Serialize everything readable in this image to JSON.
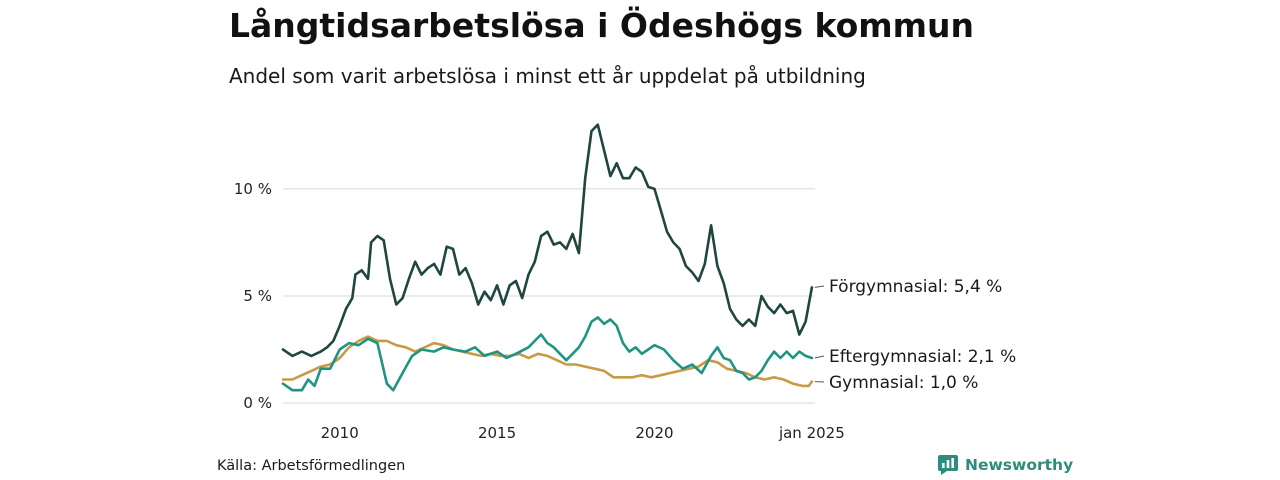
{
  "header": {
    "title": "Långtidsarbetslösa i Ödeshögs kommun",
    "subtitle": "Andel som varit arbetslösa i minst ett år uppdelat på utbildning"
  },
  "footer": {
    "source": "Källa: Arbetsförmedlingen",
    "brand": "Newsworthy"
  },
  "colors": {
    "forgymnasial": "#1f4640",
    "eftergymnasial": "#1f9483",
    "gymnasial": "#c99a45",
    "grid": "#d8d8d8",
    "brand": "#2e8c7e"
  },
  "icons": [
    "newsworthy-logo-icon"
  ],
  "chart_data": {
    "type": "line",
    "title": "Långtidsarbetslösa i Ödeshögs kommun",
    "subtitle": "Andel som varit arbetslösa i minst ett år uppdelat på utbildning",
    "xlabel": "",
    "ylabel": "",
    "xlim": [
      2008.2,
      2025.1
    ],
    "ylim": [
      0,
      13.5
    ],
    "y_ticks": [
      {
        "value": 0,
        "label": "0 %"
      },
      {
        "value": 5,
        "label": "5 %"
      },
      {
        "value": 10,
        "label": "10 %"
      }
    ],
    "x_ticks": [
      {
        "value": 2010,
        "label": "2010"
      },
      {
        "value": 2015,
        "label": "2015"
      },
      {
        "value": 2020,
        "label": "2020"
      },
      {
        "value": 2025,
        "label": "jan 2025"
      }
    ],
    "grid": true,
    "series": [
      {
        "name": "Förgymnasial",
        "end_label": "Förgymnasial: 5,4 %",
        "color": "#1f4640",
        "points": [
          [
            2008.2,
            2.5
          ],
          [
            2008.5,
            2.2
          ],
          [
            2008.8,
            2.4
          ],
          [
            2009.1,
            2.2
          ],
          [
            2009.4,
            2.4
          ],
          [
            2009.6,
            2.6
          ],
          [
            2009.8,
            2.9
          ],
          [
            2010.0,
            3.6
          ],
          [
            2010.2,
            4.4
          ],
          [
            2010.4,
            4.9
          ],
          [
            2010.5,
            6.0
          ],
          [
            2010.7,
            6.2
          ],
          [
            2010.9,
            5.8
          ],
          [
            2011.0,
            7.5
          ],
          [
            2011.2,
            7.8
          ],
          [
            2011.4,
            7.6
          ],
          [
            2011.6,
            5.8
          ],
          [
            2011.8,
            4.6
          ],
          [
            2012.0,
            4.9
          ],
          [
            2012.2,
            5.8
          ],
          [
            2012.4,
            6.6
          ],
          [
            2012.6,
            6.0
          ],
          [
            2012.8,
            6.3
          ],
          [
            2013.0,
            6.5
          ],
          [
            2013.2,
            6.0
          ],
          [
            2013.4,
            7.3
          ],
          [
            2013.6,
            7.2
          ],
          [
            2013.8,
            6.0
          ],
          [
            2014.0,
            6.3
          ],
          [
            2014.2,
            5.6
          ],
          [
            2014.4,
            4.6
          ],
          [
            2014.6,
            5.2
          ],
          [
            2014.8,
            4.8
          ],
          [
            2015.0,
            5.5
          ],
          [
            2015.2,
            4.6
          ],
          [
            2015.4,
            5.5
          ],
          [
            2015.6,
            5.7
          ],
          [
            2015.8,
            4.9
          ],
          [
            2016.0,
            6.0
          ],
          [
            2016.2,
            6.6
          ],
          [
            2016.4,
            7.8
          ],
          [
            2016.6,
            8.0
          ],
          [
            2016.8,
            7.4
          ],
          [
            2017.0,
            7.5
          ],
          [
            2017.2,
            7.2
          ],
          [
            2017.4,
            7.9
          ],
          [
            2017.6,
            7.0
          ],
          [
            2017.8,
            10.5
          ],
          [
            2018.0,
            12.7
          ],
          [
            2018.2,
            13.0
          ],
          [
            2018.4,
            11.8
          ],
          [
            2018.6,
            10.6
          ],
          [
            2018.8,
            11.2
          ],
          [
            2019.0,
            10.5
          ],
          [
            2019.2,
            10.5
          ],
          [
            2019.4,
            11.0
          ],
          [
            2019.6,
            10.8
          ],
          [
            2019.8,
            10.1
          ],
          [
            2020.0,
            10.0
          ],
          [
            2020.2,
            9.0
          ],
          [
            2020.4,
            8.0
          ],
          [
            2020.6,
            7.5
          ],
          [
            2020.8,
            7.2
          ],
          [
            2021.0,
            6.4
          ],
          [
            2021.2,
            6.1
          ],
          [
            2021.4,
            5.7
          ],
          [
            2021.6,
            6.5
          ],
          [
            2021.8,
            8.3
          ],
          [
            2022.0,
            6.4
          ],
          [
            2022.2,
            5.6
          ],
          [
            2022.4,
            4.4
          ],
          [
            2022.6,
            3.9
          ],
          [
            2022.8,
            3.6
          ],
          [
            2023.0,
            3.9
          ],
          [
            2023.2,
            3.6
          ],
          [
            2023.4,
            5.0
          ],
          [
            2023.6,
            4.5
          ],
          [
            2023.8,
            4.2
          ],
          [
            2024.0,
            4.6
          ],
          [
            2024.2,
            4.2
          ],
          [
            2024.4,
            4.3
          ],
          [
            2024.6,
            3.2
          ],
          [
            2024.8,
            3.8
          ],
          [
            2025.0,
            5.4
          ]
        ]
      },
      {
        "name": "Eftergymnasial",
        "end_label": "Eftergymnasial: 2,1 %",
        "color": "#1f9483",
        "points": [
          [
            2008.2,
            0.9
          ],
          [
            2008.5,
            0.6
          ],
          [
            2008.8,
            0.6
          ],
          [
            2009.0,
            1.1
          ],
          [
            2009.2,
            0.8
          ],
          [
            2009.4,
            1.6
          ],
          [
            2009.7,
            1.6
          ],
          [
            2010.0,
            2.5
          ],
          [
            2010.3,
            2.8
          ],
          [
            2010.6,
            2.7
          ],
          [
            2010.9,
            3.0
          ],
          [
            2011.2,
            2.8
          ],
          [
            2011.5,
            0.9
          ],
          [
            2011.7,
            0.6
          ],
          [
            2012.0,
            1.4
          ],
          [
            2012.3,
            2.2
          ],
          [
            2012.6,
            2.5
          ],
          [
            2013.0,
            2.4
          ],
          [
            2013.3,
            2.6
          ],
          [
            2013.6,
            2.5
          ],
          [
            2014.0,
            2.4
          ],
          [
            2014.3,
            2.6
          ],
          [
            2014.6,
            2.2
          ],
          [
            2015.0,
            2.4
          ],
          [
            2015.3,
            2.1
          ],
          [
            2015.6,
            2.3
          ],
          [
            2016.0,
            2.6
          ],
          [
            2016.2,
            2.9
          ],
          [
            2016.4,
            3.2
          ],
          [
            2016.6,
            2.8
          ],
          [
            2016.8,
            2.6
          ],
          [
            2017.0,
            2.3
          ],
          [
            2017.2,
            2.0
          ],
          [
            2017.4,
            2.3
          ],
          [
            2017.6,
            2.6
          ],
          [
            2017.8,
            3.1
          ],
          [
            2018.0,
            3.8
          ],
          [
            2018.2,
            4.0
          ],
          [
            2018.4,
            3.7
          ],
          [
            2018.6,
            3.9
          ],
          [
            2018.8,
            3.6
          ],
          [
            2019.0,
            2.8
          ],
          [
            2019.2,
            2.4
          ],
          [
            2019.4,
            2.6
          ],
          [
            2019.6,
            2.3
          ],
          [
            2019.8,
            2.5
          ],
          [
            2020.0,
            2.7
          ],
          [
            2020.3,
            2.5
          ],
          [
            2020.6,
            2.0
          ],
          [
            2020.9,
            1.6
          ],
          [
            2021.2,
            1.8
          ],
          [
            2021.5,
            1.4
          ],
          [
            2021.8,
            2.2
          ],
          [
            2022.0,
            2.6
          ],
          [
            2022.2,
            2.1
          ],
          [
            2022.4,
            2.0
          ],
          [
            2022.6,
            1.5
          ],
          [
            2022.8,
            1.4
          ],
          [
            2023.0,
            1.1
          ],
          [
            2023.2,
            1.2
          ],
          [
            2023.4,
            1.5
          ],
          [
            2023.6,
            2.0
          ],
          [
            2023.8,
            2.4
          ],
          [
            2024.0,
            2.1
          ],
          [
            2024.2,
            2.4
          ],
          [
            2024.4,
            2.1
          ],
          [
            2024.6,
            2.4
          ],
          [
            2024.8,
            2.2
          ],
          [
            2025.0,
            2.1
          ]
        ]
      },
      {
        "name": "Gymnasial",
        "end_label": "Gymnasial: 1,0 %",
        "color": "#c99a45",
        "points": [
          [
            2008.2,
            1.1
          ],
          [
            2008.5,
            1.1
          ],
          [
            2008.8,
            1.3
          ],
          [
            2009.1,
            1.5
          ],
          [
            2009.4,
            1.7
          ],
          [
            2009.7,
            1.8
          ],
          [
            2010.0,
            2.1
          ],
          [
            2010.3,
            2.6
          ],
          [
            2010.6,
            2.9
          ],
          [
            2010.9,
            3.1
          ],
          [
            2011.2,
            2.9
          ],
          [
            2011.5,
            2.9
          ],
          [
            2011.8,
            2.7
          ],
          [
            2012.1,
            2.6
          ],
          [
            2012.4,
            2.4
          ],
          [
            2012.7,
            2.6
          ],
          [
            2013.0,
            2.8
          ],
          [
            2013.3,
            2.7
          ],
          [
            2013.6,
            2.5
          ],
          [
            2013.9,
            2.4
          ],
          [
            2014.2,
            2.3
          ],
          [
            2014.5,
            2.2
          ],
          [
            2014.8,
            2.3
          ],
          [
            2015.1,
            2.2
          ],
          [
            2015.4,
            2.2
          ],
          [
            2015.7,
            2.3
          ],
          [
            2016.0,
            2.1
          ],
          [
            2016.3,
            2.3
          ],
          [
            2016.6,
            2.2
          ],
          [
            2016.9,
            2.0
          ],
          [
            2017.2,
            1.8
          ],
          [
            2017.5,
            1.8
          ],
          [
            2017.8,
            1.7
          ],
          [
            2018.1,
            1.6
          ],
          [
            2018.4,
            1.5
          ],
          [
            2018.7,
            1.2
          ],
          [
            2019.0,
            1.2
          ],
          [
            2019.3,
            1.2
          ],
          [
            2019.6,
            1.3
          ],
          [
            2019.9,
            1.2
          ],
          [
            2020.2,
            1.3
          ],
          [
            2020.5,
            1.4
          ],
          [
            2020.8,
            1.5
          ],
          [
            2021.1,
            1.6
          ],
          [
            2021.4,
            1.7
          ],
          [
            2021.7,
            2.0
          ],
          [
            2022.0,
            1.9
          ],
          [
            2022.3,
            1.6
          ],
          [
            2022.6,
            1.5
          ],
          [
            2022.9,
            1.4
          ],
          [
            2023.2,
            1.2
          ],
          [
            2023.5,
            1.1
          ],
          [
            2023.8,
            1.2
          ],
          [
            2024.1,
            1.1
          ],
          [
            2024.4,
            0.9
          ],
          [
            2024.7,
            0.8
          ],
          [
            2024.9,
            0.8
          ],
          [
            2025.0,
            1.0
          ]
        ]
      }
    ]
  }
}
